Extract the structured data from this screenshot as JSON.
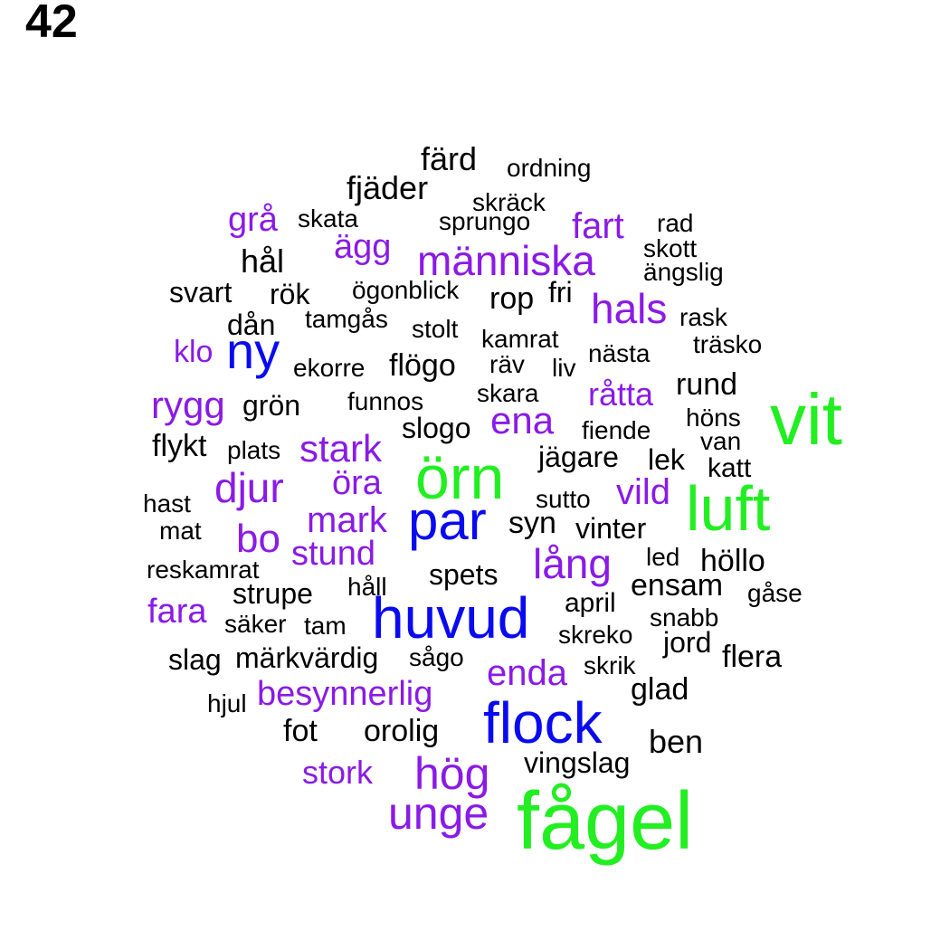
{
  "page_number": "42",
  "colors": {
    "black": "#000000",
    "purple": "#8a1ae6",
    "blue": "#0a0af0",
    "green": "#22ee22"
  },
  "words": [
    {
      "text": "färd",
      "color": "black"
    },
    {
      "text": "ordning",
      "color": "black"
    },
    {
      "text": "fjäder",
      "color": "black"
    },
    {
      "text": "skräck",
      "color": "black"
    },
    {
      "text": "grå",
      "color": "purple"
    },
    {
      "text": "skata",
      "color": "black"
    },
    {
      "text": "sprungo",
      "color": "black"
    },
    {
      "text": "fart",
      "color": "purple"
    },
    {
      "text": "rad",
      "color": "black"
    },
    {
      "text": "ägg",
      "color": "purple"
    },
    {
      "text": "skott",
      "color": "black"
    },
    {
      "text": "hål",
      "color": "black"
    },
    {
      "text": "människa",
      "color": "purple"
    },
    {
      "text": "ängslig",
      "color": "black"
    },
    {
      "text": "svart",
      "color": "black"
    },
    {
      "text": "rök",
      "color": "black"
    },
    {
      "text": "ögonblick",
      "color": "black"
    },
    {
      "text": "rop",
      "color": "black"
    },
    {
      "text": "fri",
      "color": "black"
    },
    {
      "text": "hals",
      "color": "purple"
    },
    {
      "text": "dån",
      "color": "black"
    },
    {
      "text": "tamgås",
      "color": "black"
    },
    {
      "text": "stolt",
      "color": "black"
    },
    {
      "text": "rask",
      "color": "black"
    },
    {
      "text": "kamrat",
      "color": "black"
    },
    {
      "text": "träsko",
      "color": "black"
    },
    {
      "text": "klo",
      "color": "purple"
    },
    {
      "text": "ny",
      "color": "blue"
    },
    {
      "text": "ekorre",
      "color": "black"
    },
    {
      "text": "flögo",
      "color": "black"
    },
    {
      "text": "räv",
      "color": "black"
    },
    {
      "text": "liv",
      "color": "black"
    },
    {
      "text": "nästa",
      "color": "black"
    },
    {
      "text": "skara",
      "color": "black"
    },
    {
      "text": "råtta",
      "color": "purple"
    },
    {
      "text": "rund",
      "color": "black"
    },
    {
      "text": "rygg",
      "color": "purple"
    },
    {
      "text": "grön",
      "color": "black"
    },
    {
      "text": "funnos",
      "color": "black"
    },
    {
      "text": "vit",
      "color": "green"
    },
    {
      "text": "höns",
      "color": "black"
    },
    {
      "text": "slogo",
      "color": "black"
    },
    {
      "text": "ena",
      "color": "purple"
    },
    {
      "text": "fiende",
      "color": "black"
    },
    {
      "text": "van",
      "color": "black"
    },
    {
      "text": "flykt",
      "color": "black"
    },
    {
      "text": "plats",
      "color": "black"
    },
    {
      "text": "stark",
      "color": "purple"
    },
    {
      "text": "jägare",
      "color": "black"
    },
    {
      "text": "lek",
      "color": "black"
    },
    {
      "text": "katt",
      "color": "black"
    },
    {
      "text": "örn",
      "color": "green"
    },
    {
      "text": "djur",
      "color": "purple"
    },
    {
      "text": "öra",
      "color": "purple"
    },
    {
      "text": "luft",
      "color": "green"
    },
    {
      "text": "hast",
      "color": "black"
    },
    {
      "text": "sutto",
      "color": "black"
    },
    {
      "text": "vild",
      "color": "purple"
    },
    {
      "text": "mark",
      "color": "purple"
    },
    {
      "text": "par",
      "color": "blue"
    },
    {
      "text": "syn",
      "color": "black"
    },
    {
      "text": "mat",
      "color": "black"
    },
    {
      "text": "vinter",
      "color": "black"
    },
    {
      "text": "bo",
      "color": "purple"
    },
    {
      "text": "stund",
      "color": "purple"
    },
    {
      "text": "lång",
      "color": "purple"
    },
    {
      "text": "led",
      "color": "black"
    },
    {
      "text": "höllo",
      "color": "black"
    },
    {
      "text": "reskamrat",
      "color": "black"
    },
    {
      "text": "spets",
      "color": "black"
    },
    {
      "text": "strupe",
      "color": "black"
    },
    {
      "text": "håll",
      "color": "black"
    },
    {
      "text": "ensam",
      "color": "black"
    },
    {
      "text": "gåse",
      "color": "black"
    },
    {
      "text": "fara",
      "color": "purple"
    },
    {
      "text": "april",
      "color": "black"
    },
    {
      "text": "huvud",
      "color": "blue"
    },
    {
      "text": "snabb",
      "color": "black"
    },
    {
      "text": "säker",
      "color": "black"
    },
    {
      "text": "tam",
      "color": "black"
    },
    {
      "text": "skreko",
      "color": "black"
    },
    {
      "text": "jord",
      "color": "black"
    },
    {
      "text": "slag",
      "color": "black"
    },
    {
      "text": "märkvärdig",
      "color": "black"
    },
    {
      "text": "sågo",
      "color": "black"
    },
    {
      "text": "flera",
      "color": "black"
    },
    {
      "text": "enda",
      "color": "purple"
    },
    {
      "text": "skrik",
      "color": "black"
    },
    {
      "text": "besynnerlig",
      "color": "purple"
    },
    {
      "text": "glad",
      "color": "black"
    },
    {
      "text": "hjul",
      "color": "black"
    },
    {
      "text": "flock",
      "color": "blue"
    },
    {
      "text": "fot",
      "color": "black"
    },
    {
      "text": "orolig",
      "color": "black"
    },
    {
      "text": "ben",
      "color": "black"
    },
    {
      "text": "vingslag",
      "color": "black"
    },
    {
      "text": "stork",
      "color": "purple"
    },
    {
      "text": "hög",
      "color": "purple"
    },
    {
      "text": "unge",
      "color": "purple"
    },
    {
      "text": "fågel",
      "color": "green"
    }
  ]
}
